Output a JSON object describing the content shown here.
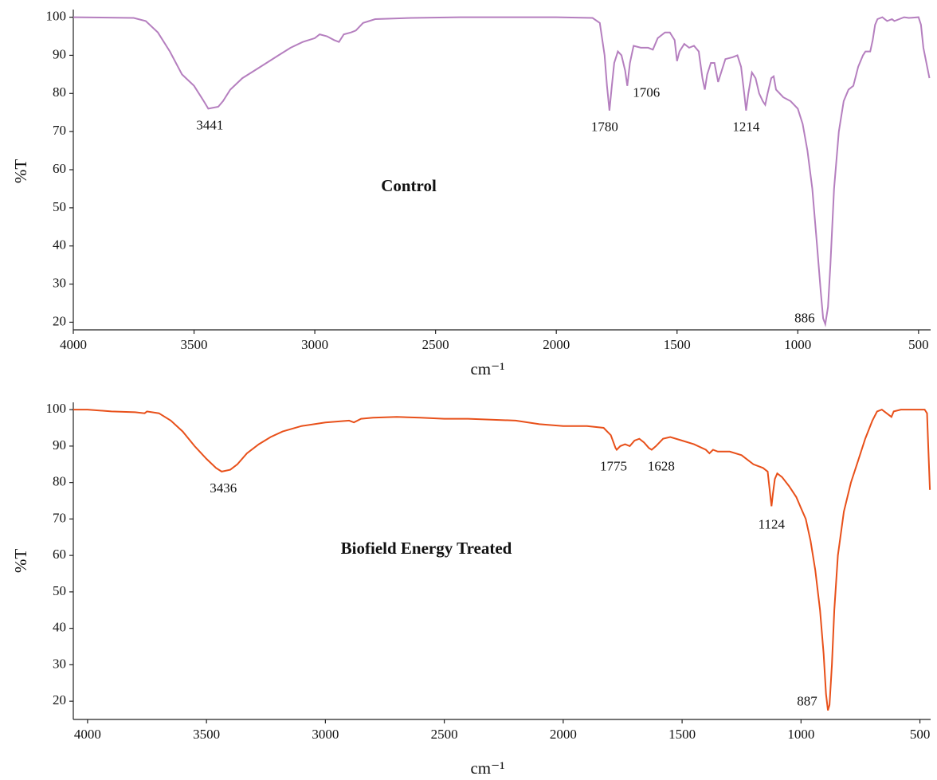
{
  "chart_data": [
    {
      "type": "line",
      "x_label": "cm⁻¹",
      "y_label": "%T",
      "xlim": [
        4000,
        450
      ],
      "ylim": [
        18,
        102
      ],
      "xticks": [
        4000,
        3500,
        3000,
        2500,
        2000,
        1500,
        1000,
        500
      ],
      "yticks": [
        20,
        30,
        40,
        50,
        60,
        70,
        80,
        90,
        100
      ],
      "peaks": [
        3441,
        1780,
        1706,
        1214,
        886
      ],
      "x": [
        4000,
        3750,
        3700,
        3650,
        3600,
        3550,
        3500,
        3460,
        3441,
        3400,
        3380,
        3350,
        3300,
        3250,
        3200,
        3150,
        3100,
        3050,
        3000,
        2980,
        2950,
        2920,
        2900,
        2880,
        2850,
        2830,
        2800,
        2750,
        2600,
        2400,
        2300,
        2000,
        1850,
        1820,
        1800,
        1790,
        1780,
        1770,
        1760,
        1745,
        1730,
        1715,
        1706,
        1695,
        1680,
        1650,
        1620,
        1600,
        1580,
        1550,
        1530,
        1510,
        1500,
        1490,
        1470,
        1450,
        1430,
        1410,
        1395,
        1385,
        1375,
        1360,
        1345,
        1330,
        1320,
        1300,
        1270,
        1250,
        1235,
        1220,
        1214,
        1205,
        1190,
        1175,
        1160,
        1145,
        1135,
        1125,
        1110,
        1100,
        1090,
        1060,
        1030,
        1000,
        980,
        960,
        940,
        920,
        905,
        895,
        886,
        875,
        865,
        850,
        830,
        810,
        790,
        770,
        750,
        730,
        720,
        700,
        690,
        680,
        670,
        650,
        630,
        610,
        600,
        580,
        560,
        540,
        500,
        490,
        480,
        455
      ],
      "series": [
        {
          "name": "Control",
          "color": "#b57fbf",
          "values": [
            100,
            99.8,
            99,
            96,
            91,
            85,
            82,
            78,
            76,
            76.5,
            78,
            81,
            84,
            86,
            88,
            90,
            92,
            93.5,
            94.5,
            95.5,
            95,
            94,
            93.5,
            95.5,
            96,
            96.5,
            98.5,
            99.5,
            99.8,
            100,
            100,
            100,
            99.8,
            98.5,
            90,
            82,
            75.5,
            82,
            88,
            91,
            90,
            86,
            82,
            88,
            92.5,
            92,
            92,
            91.5,
            94.5,
            96,
            96,
            94,
            88.5,
            91,
            93,
            92,
            92.5,
            91,
            84,
            81,
            85,
            88,
            88,
            83,
            85,
            89,
            89.5,
            90,
            87,
            79,
            75.5,
            80,
            85.5,
            84,
            80,
            78,
            77,
            80,
            84,
            84.5,
            81,
            79,
            78,
            76,
            72,
            65,
            55,
            40,
            28,
            21,
            19.5,
            24,
            35,
            55,
            70,
            78,
            81,
            82,
            87,
            90,
            91,
            91,
            94,
            98,
            99.5,
            100,
            99,
            99.5,
            99,
            99.5,
            100,
            99.8,
            100,
            98,
            92,
            84
          ]
        }
      ]
    },
    {
      "type": "line",
      "x_label": "cm⁻¹",
      "y_label": "%T",
      "xlim": [
        4060,
        455
      ],
      "ylim": [
        15,
        102
      ],
      "xticks": [
        4000,
        3500,
        3000,
        2500,
        2000,
        1500,
        1000,
        500
      ],
      "yticks": [
        20,
        30,
        40,
        50,
        60,
        70,
        80,
        90,
        100
      ],
      "peaks": [
        3436,
        1775,
        1628,
        1124,
        887
      ],
      "x": [
        4060,
        4000,
        3900,
        3800,
        3760,
        3750,
        3700,
        3650,
        3600,
        3550,
        3500,
        3460,
        3436,
        3400,
        3370,
        3330,
        3280,
        3230,
        3180,
        3100,
        3000,
        2900,
        2880,
        2850,
        2800,
        2700,
        2600,
        2500,
        2400,
        2200,
        2100,
        2000,
        1900,
        1830,
        1800,
        1780,
        1775,
        1760,
        1740,
        1720,
        1700,
        1680,
        1660,
        1640,
        1628,
        1610,
        1580,
        1550,
        1500,
        1450,
        1400,
        1385,
        1370,
        1350,
        1300,
        1250,
        1200,
        1160,
        1140,
        1130,
        1124,
        1118,
        1110,
        1100,
        1080,
        1050,
        1020,
        1000,
        980,
        960,
        940,
        920,
        905,
        895,
        887,
        880,
        870,
        860,
        845,
        820,
        790,
        760,
        730,
        700,
        680,
        660,
        640,
        620,
        610,
        580,
        520,
        480,
        470,
        465,
        458
      ],
      "series": [
        {
          "name": "Biofield Energy Treated",
          "color": "#e8501a",
          "values": [
            100,
            100,
            99.5,
            99.3,
            99,
            99.5,
            99,
            97,
            94,
            90,
            86.5,
            84,
            83,
            83.5,
            85,
            88,
            90.5,
            92.5,
            94,
            95.5,
            96.5,
            97,
            96.5,
            97.5,
            97.8,
            98,
            97.8,
            97.5,
            97.5,
            97,
            96,
            95.5,
            95.5,
            95,
            93,
            89.5,
            89,
            90,
            90.5,
            90,
            91.5,
            92,
            91,
            89.5,
            89,
            90,
            92,
            92.5,
            91.5,
            90.5,
            89,
            88,
            89,
            88.5,
            88.5,
            87.5,
            85,
            84,
            83,
            77,
            73.5,
            77,
            81,
            82.5,
            81.5,
            79,
            76,
            73,
            70,
            64,
            56,
            45,
            33,
            22,
            17.5,
            19,
            30,
            45,
            60,
            72,
            80,
            86,
            92,
            97,
            99.5,
            100,
            99,
            98,
            99.5,
            100,
            100,
            100,
            99,
            90,
            78
          ]
        }
      ]
    }
  ]
}
